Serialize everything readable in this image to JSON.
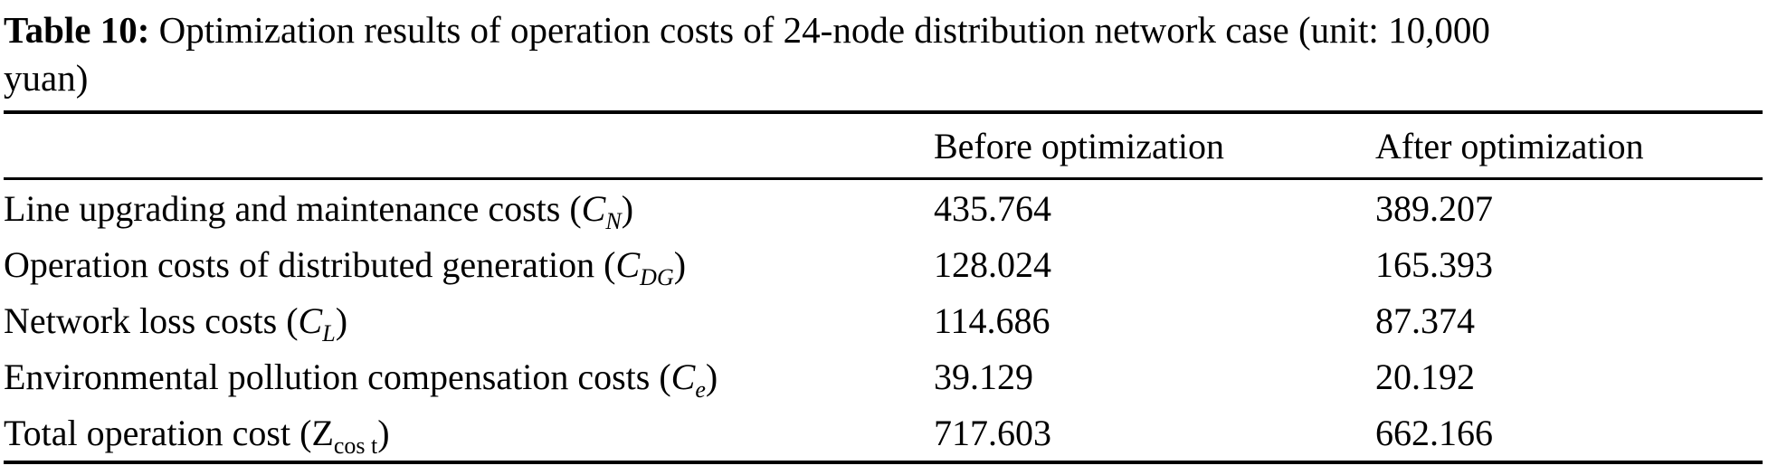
{
  "caption": {
    "label": "Table 10:",
    "line1": "Optimization results of operation costs of 24-node distribution network case (unit: 10,000",
    "line2": "yuan)"
  },
  "table": {
    "columns": [
      "",
      "Before optimization",
      "After optimization"
    ],
    "rows": [
      {
        "label": "Line upgrading and maintenance costs (",
        "symbol": "C",
        "subscript": "N",
        "label_close": ")",
        "before": "435.764",
        "after": "389.207"
      },
      {
        "label": "Operation costs of distributed generation (",
        "symbol": "C",
        "subscript": "DG",
        "label_close": ")",
        "before": "128.024",
        "after": "165.393"
      },
      {
        "label": "Network loss costs (",
        "symbol": "C",
        "subscript": "L",
        "label_close": ")",
        "before": "114.686",
        "after": "87.374"
      },
      {
        "label": "Environmental pollution compensation costs (",
        "symbol": "C",
        "subscript": "e",
        "label_close": ")",
        "before": "39.129",
        "after": "20.192"
      },
      {
        "label": "Total operation cost (",
        "symbol": "Z",
        "subscript": "cos t",
        "label_close": ")",
        "before": "717.603",
        "after": "662.166"
      }
    ]
  }
}
